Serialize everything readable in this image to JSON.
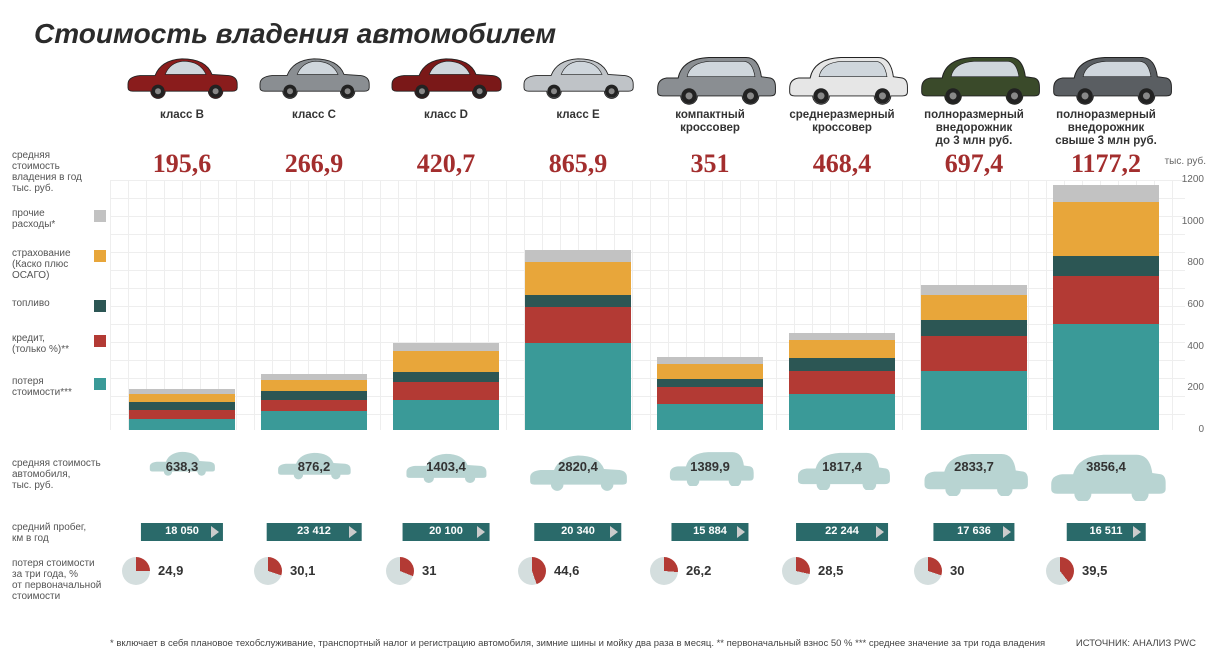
{
  "title": "Стоимость владения автомобилем",
  "axis_unit": "тыс. руб.",
  "ymax": 1200,
  "ytick_step": 200,
  "colors": {
    "loss": "#3a9a98",
    "credit": "#b33a34",
    "fuel": "#2c5654",
    "insurance": "#e8a63a",
    "other": "#c2c2c2",
    "big_cost": "#a32e2e",
    "mileage_bar": "#2a6a6a",
    "pie_fill": "#b33a34",
    "pie_bg": "#d4dede",
    "silhouette": "#b8d4d2"
  },
  "legend": [
    {
      "key": "other",
      "label": "прочие\nрасходы*"
    },
    {
      "key": "insurance",
      "label": "страхование\n(Каско плюс\nОСАГО)"
    },
    {
      "key": "fuel",
      "label": "топливо"
    },
    {
      "key": "credit",
      "label": "кредит,\n(только %)**"
    },
    {
      "key": "loss",
      "label": "потеря\nстоимости***"
    }
  ],
  "row_labels": {
    "avg_cost": "средняя\nстоимость\nвладения в год\nтыс. руб.",
    "car_price": "средняя стоимость\nавтомобиля,\nтыс. руб.",
    "mileage": "средний пробег,\nкм в год",
    "loss_pct": "потеря стоимости\nза три года, %\nот первоначальной\nстоимости"
  },
  "footnote": "* включает в себя плановое техобслуживание, транспортный налог и регистрацию автомобиля, зимние шины и мойку два раза в месяц.   ** первоначальный взнос 50 %   *** среднее значение за три года владения",
  "source": "ИСТОЧНИК: АНАЛИЗ PWC",
  "cars": [
    {
      "class": "класс B",
      "cost": "195,6",
      "price": "638,3",
      "mileage": "18 050",
      "loss_pct": "24,9",
      "bar": {
        "loss": 55,
        "credit": 40,
        "fuel": 38,
        "insurance": 42,
        "other": 20
      },
      "sil_w": 70,
      "car_color": "#8a1c1c",
      "car_type": "sedan"
    },
    {
      "class": "класс C",
      "cost": "266,9",
      "price": "876,2",
      "mileage": "23 412",
      "loss_pct": "30,1",
      "bar": {
        "loss": 90,
        "credit": 52,
        "fuel": 44,
        "insurance": 55,
        "other": 26
      },
      "sil_w": 78,
      "car_color": "#8a8e92",
      "car_type": "sedan"
    },
    {
      "class": "класс D",
      "cost": "420,7",
      "price": "1403,4",
      "mileage": "20 100",
      "loss_pct": "31",
      "bar": {
        "loss": 145,
        "credit": 85,
        "fuel": 50,
        "insurance": 100,
        "other": 40
      },
      "sil_w": 86,
      "car_color": "#7a1818",
      "car_type": "sedan"
    },
    {
      "class": "класс E",
      "cost": "865,9",
      "price": "2820,4",
      "mileage": "20 340",
      "loss_pct": "44,6",
      "bar": {
        "loss": 420,
        "credit": 170,
        "fuel": 60,
        "insurance": 155,
        "other": 60
      },
      "sil_w": 104,
      "car_color": "#bfc3c7",
      "car_type": "sedan"
    },
    {
      "class": "компактный\nкроссовер",
      "cost": "351",
      "price": "1389,9",
      "mileage": "15 884",
      "loss_pct": "26,2",
      "bar": {
        "loss": 125,
        "credit": 82,
        "fuel": 40,
        "insurance": 70,
        "other": 34
      },
      "sil_w": 90,
      "car_color": "#8a8e92",
      "car_type": "suv"
    },
    {
      "class": "среднеразмерный\nкроссовер",
      "cost": "468,4",
      "price": "1817,4",
      "mileage": "22 244",
      "loss_pct": "28,5",
      "bar": {
        "loss": 175,
        "credit": 108,
        "fuel": 62,
        "insurance": 85,
        "other": 38
      },
      "sil_w": 98,
      "car_color": "#e6e6e6",
      "car_type": "suv"
    },
    {
      "class": "полноразмерный\nвнедорожник\nдо 3 млн руб.",
      "cost": "697,4",
      "price": "2833,7",
      "mileage": "17 636",
      "loss_pct": "30",
      "bar": {
        "loss": 285,
        "credit": 168,
        "fuel": 75,
        "insurance": 120,
        "other": 50
      },
      "sil_w": 110,
      "car_color": "#3a4a2a",
      "car_type": "suv"
    },
    {
      "class": "полноразмерный\nвнедорожник\nсвыше 3 млн руб.",
      "cost": "1177,2",
      "price": "3856,4",
      "mileage": "16 511",
      "loss_pct": "39,5",
      "bar": {
        "loss": 510,
        "credit": 228,
        "fuel": 95,
        "insurance": 260,
        "other": 85
      },
      "sil_w": 122,
      "car_color": "#5a5e62",
      "car_type": "suv"
    }
  ]
}
